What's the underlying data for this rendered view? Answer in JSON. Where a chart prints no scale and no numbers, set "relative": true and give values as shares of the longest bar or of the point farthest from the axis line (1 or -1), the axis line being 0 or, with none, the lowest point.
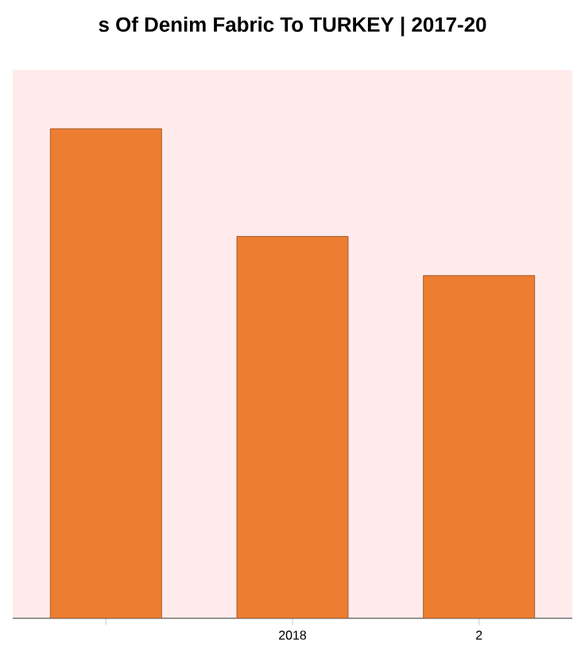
{
  "chart_data": {
    "type": "bar",
    "title": "s Of Denim Fabric To TURKEY | 2017-20",
    "categories": [
      null,
      "2018",
      "2"
    ],
    "values": [
      1,
      0.78,
      0.7
    ],
    "color": "#ed7d31",
    "relative": true
  }
}
